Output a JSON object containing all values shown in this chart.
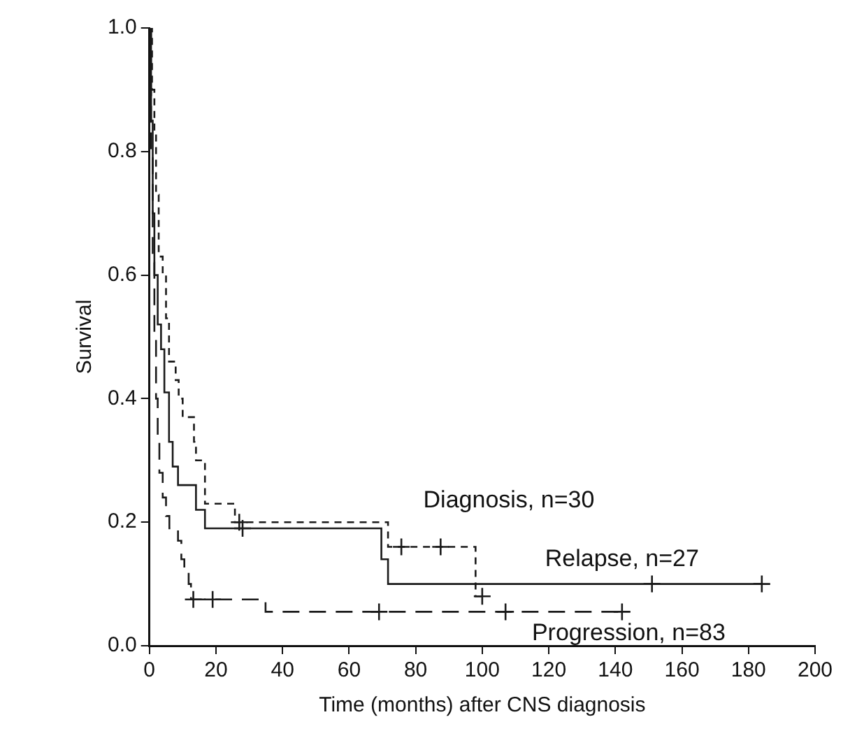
{
  "chart_data": {
    "type": "step",
    "xlabel": "Time (months) after CNS diagnosis",
    "ylabel": "Survival",
    "xlim": [
      0,
      200
    ],
    "xticks": [
      0,
      20,
      40,
      60,
      80,
      100,
      120,
      140,
      160,
      180,
      200
    ],
    "ylim": [
      0,
      1
    ],
    "yticks": [
      {
        "value": 0,
        "label": "0.0"
      },
      {
        "value": 0.2,
        "label": "0.2"
      },
      {
        "value": 0.4,
        "label": "0.4"
      },
      {
        "value": 0.6,
        "label": "0.6"
      },
      {
        "value": 0.8,
        "label": "0.8"
      },
      {
        "value": 1,
        "label": "1.0"
      }
    ],
    "grid": false,
    "legend": false,
    "series": [
      {
        "type": "step",
        "name": "Diagnosis, n=30",
        "line_style": "dashed",
        "color": "#1a1a1a",
        "x": [
          0,
          0.8,
          1.5,
          2,
          2.8,
          4,
          5,
          5.9,
          7.9,
          8.8,
          10,
          13.4,
          14,
          16.7,
          25.7,
          71.7,
          98,
          100
        ],
        "values": [
          1,
          0.9,
          0.83,
          0.73,
          0.63,
          0.6,
          0.53,
          0.46,
          0.43,
          0.4,
          0.37,
          0.33,
          0.3,
          0.23,
          0.2,
          0.16,
          0.08,
          0.08
        ]
      },
      {
        "type": "step",
        "name": "Relapse, n=27",
        "line_style": "solid",
        "color": "#1a1a1a",
        "x": [
          0,
          0.5,
          1,
          1.5,
          2.5,
          3.5,
          4.5,
          5.9,
          7,
          8.6,
          14,
          16.7,
          69.7,
          71.7,
          184
        ],
        "values": [
          1,
          0.85,
          0.7,
          0.6,
          0.52,
          0.48,
          0.41,
          0.33,
          0.29,
          0.26,
          0.22,
          0.19,
          0.14,
          0.1,
          0.1
        ]
      },
      {
        "type": "step",
        "name": "Progression, n=83",
        "line_style": "longdash",
        "color": "#1a1a1a",
        "x": [
          0,
          0.5,
          1,
          1.5,
          2,
          2.5,
          3,
          4,
          5,
          6,
          8.6,
          9.6,
          10.5,
          11.8,
          12.5,
          34.9,
          142
        ],
        "values": [
          1,
          0.8,
          0.62,
          0.5,
          0.4,
          0.33,
          0.28,
          0.24,
          0.21,
          0.19,
          0.17,
          0.14,
          0.12,
          0.1,
          0.075,
          0.055,
          0.055
        ]
      },
      {
        "type": "scatter",
        "marker": "cross",
        "color": "#1a1a1a",
        "x": [
          27,
          75.7,
          87.5,
          100
        ],
        "values": [
          0.2,
          0.16,
          0.16,
          0.08
        ]
      },
      {
        "type": "scatter",
        "marker": "cross",
        "color": "#1a1a1a",
        "x": [
          28,
          151,
          184
        ],
        "values": [
          0.19,
          0.1,
          0.1
        ]
      },
      {
        "type": "scatter",
        "marker": "cross",
        "color": "#1a1a1a",
        "x": [
          13.2,
          19,
          69,
          107,
          142
        ],
        "values": [
          0.075,
          0.075,
          0.055,
          0.055,
          0.055
        ]
      }
    ]
  }
}
